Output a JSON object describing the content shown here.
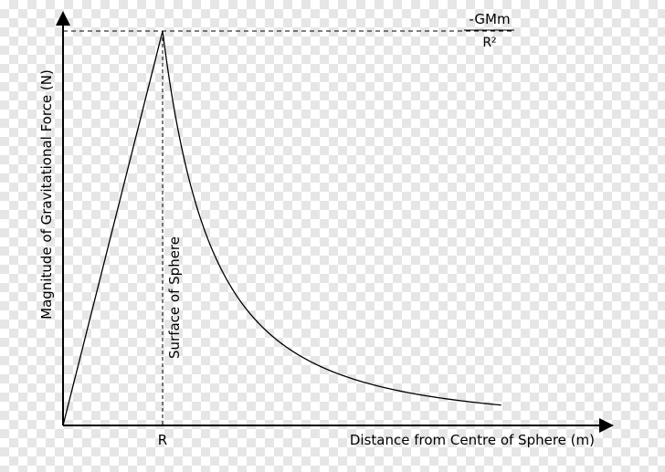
{
  "chart_data": {
    "type": "line",
    "xlabel": "Distance from Centre of Sphere (m)",
    "ylabel": "Magnitude of Gravitational Force (N)",
    "x_tick_labels": [
      "R"
    ],
    "annotations": {
      "surface_label": "Surface of Sphere",
      "peak_numerator": "-GMm",
      "peak_denominator": "R²"
    },
    "x_unit_note": "x in units of R",
    "y_unit_note": "y in units of GMm/R²",
    "xlim": [
      0,
      4.4
    ],
    "ylim": [
      0,
      1
    ],
    "surface_x": 1,
    "peak_value": 1,
    "series": [
      {
        "inside": {
          "x": [
            0,
            1
          ],
          "y": [
            0,
            1
          ]
        },
        "outside": {
          "x": [
            1,
            1.1,
            1.25,
            1.5,
            1.75,
            2.0,
            2.25,
            2.5,
            2.75,
            3.0,
            3.25,
            3.5,
            3.75,
            4.0,
            4.25,
            4.4
          ],
          "y": [
            1.0,
            0.826,
            0.64,
            0.444,
            0.327,
            0.25,
            0.198,
            0.16,
            0.132,
            0.111,
            0.095,
            0.082,
            0.071,
            0.063,
            0.055,
            0.05
          ]
        }
      }
    ],
    "grid": false,
    "legend": "none",
    "colors": {
      "line": "#000000",
      "axes": "#000000",
      "guides": "#000000"
    }
  }
}
